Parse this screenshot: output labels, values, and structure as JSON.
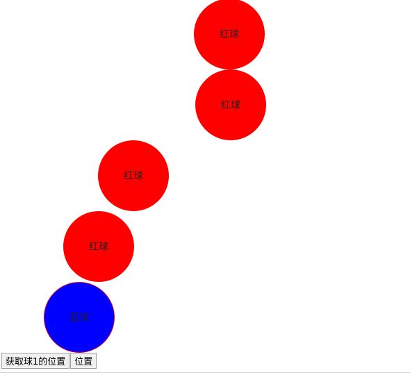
{
  "balls": [
    {
      "label": "红球",
      "color": "#ff0000"
    },
    {
      "label": "红球",
      "color": "#ff0000"
    },
    {
      "label": "红球",
      "color": "#ff0000"
    },
    {
      "label": "红球",
      "color": "#ff0000"
    },
    {
      "label": "蓝球",
      "color": "#0000ff"
    }
  ],
  "buttons": {
    "get_ball1_position": "获取球1的位置",
    "position": "位置"
  }
}
